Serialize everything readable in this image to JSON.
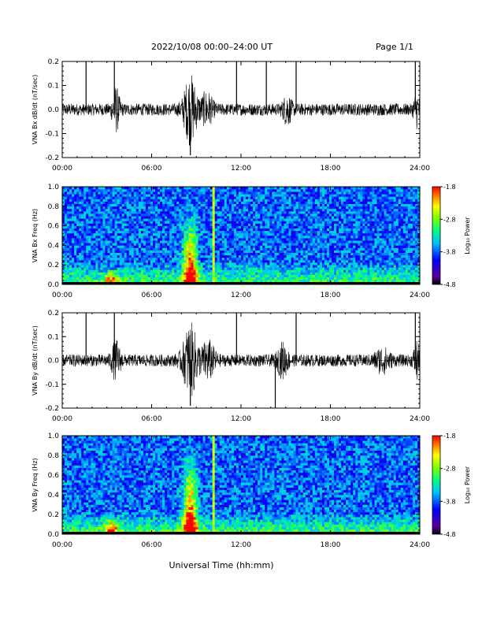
{
  "header": {
    "title": "2022/10/08  00:00–24:00 UT",
    "page": "Page 1/1"
  },
  "x_axis_label": "Universal Time (hh:mm)",
  "colorbar": {
    "label": "Log₁₀ Power",
    "ticks": [
      "-1.8",
      "-2.8",
      "-3.8",
      "-4.8"
    ],
    "colors": [
      "#000000",
      "#5a0099",
      "#0000ff",
      "#00c0ff",
      "#00ff80",
      "#7fff00",
      "#ffff00",
      "#ff8000",
      "#ff0000"
    ]
  },
  "chart_data": [
    {
      "type": "line",
      "ylabel": "VNA Bx dB/dt (nT/sec)",
      "xlim": [
        0,
        24
      ],
      "ylim": [
        -0.2,
        0.2
      ],
      "x_ticks": [
        "00:00",
        "06:00",
        "12:00",
        "18:00",
        "24:00"
      ],
      "y_ticks": [
        "0.2",
        "0.1",
        "0.0",
        "-0.1",
        "-0.2"
      ],
      "y_tick_values": [
        0.2,
        0.1,
        0.0,
        -0.1,
        -0.2
      ],
      "x_tick_values": [
        0,
        6,
        12,
        18,
        24
      ],
      "base_amplitude": 0.025,
      "bursts": [
        {
          "t": 3.6,
          "amp": 0.08,
          "w": 0.25
        },
        {
          "t": 8.6,
          "amp": 0.13,
          "w": 0.45
        },
        {
          "t": 9.7,
          "amp": 0.06,
          "w": 0.4
        },
        {
          "t": 15.1,
          "amp": 0.05,
          "w": 0.3
        },
        {
          "t": 23.8,
          "amp": 0.06,
          "w": 0.2
        }
      ],
      "spikes": [
        {
          "t": 1.6,
          "v": 0.2
        },
        {
          "t": 3.5,
          "v": 0.2
        },
        {
          "t": 8.6,
          "v": -0.19
        },
        {
          "t": 11.7,
          "v": 0.2
        },
        {
          "t": 13.7,
          "v": 0.2
        },
        {
          "t": 15.7,
          "v": 0.2
        },
        {
          "t": 23.7,
          "v": 0.2
        }
      ]
    },
    {
      "type": "heatmap",
      "ylabel": "VNA Bx Freq (Hz)",
      "xlim": [
        0,
        24
      ],
      "ylim": [
        0,
        1.0
      ],
      "x_ticks": [
        "00:00",
        "06:00",
        "12:00",
        "18:00",
        "24:00"
      ],
      "y_ticks": [
        "1.0",
        "0.8",
        "0.6",
        "0.4",
        "0.2",
        "0.0"
      ],
      "y_tick_values": [
        1.0,
        0.8,
        0.6,
        0.4,
        0.2,
        0.0
      ],
      "x_tick_values": [
        0,
        6,
        12,
        18,
        24
      ],
      "zlim": [
        -4.8,
        -1.8
      ],
      "enhancements": [
        {
          "t": 3.3,
          "fmax": 0.15,
          "boost": 0.8
        },
        {
          "t": 8.6,
          "fmax": 0.8,
          "boost": 1.0
        },
        {
          "t": 10.1,
          "fmax": 1.0,
          "boost": 0.7
        }
      ]
    },
    {
      "type": "line",
      "ylabel": "VNA By dB/dt (nT/sec)",
      "xlim": [
        0,
        24
      ],
      "ylim": [
        -0.2,
        0.2
      ],
      "x_ticks": [
        "00:00",
        "06:00",
        "12:00",
        "18:00",
        "24:00"
      ],
      "y_ticks": [
        "0.2",
        "0.1",
        "0.0",
        "-0.1",
        "-0.2"
      ],
      "y_tick_values": [
        0.2,
        0.1,
        0.0,
        -0.1,
        -0.2
      ],
      "x_tick_values": [
        0,
        6,
        12,
        18,
        24
      ],
      "base_amplitude": 0.025,
      "bursts": [
        {
          "t": 3.6,
          "amp": 0.07,
          "w": 0.3
        },
        {
          "t": 8.6,
          "amp": 0.14,
          "w": 0.5
        },
        {
          "t": 9.8,
          "amp": 0.07,
          "w": 0.45
        },
        {
          "t": 14.8,
          "amp": 0.06,
          "w": 0.35
        },
        {
          "t": 21.5,
          "amp": 0.04,
          "w": 0.5
        },
        {
          "t": 23.8,
          "amp": 0.07,
          "w": 0.2
        }
      ],
      "spikes": [
        {
          "t": 1.6,
          "v": 0.2
        },
        {
          "t": 3.5,
          "v": 0.2
        },
        {
          "t": 8.6,
          "v": -0.19
        },
        {
          "t": 11.7,
          "v": 0.2
        },
        {
          "t": 14.3,
          "v": -0.2
        },
        {
          "t": 15.7,
          "v": 0.2
        },
        {
          "t": 23.7,
          "v": 0.2
        }
      ]
    },
    {
      "type": "heatmap",
      "ylabel": "VNA By Freq (Hz)",
      "xlim": [
        0,
        24
      ],
      "ylim": [
        0,
        1.0
      ],
      "x_ticks": [
        "00:00",
        "06:00",
        "12:00",
        "18:00",
        "24:00"
      ],
      "y_ticks": [
        "1.0",
        "0.8",
        "0.6",
        "0.4",
        "0.2",
        "0.0"
      ],
      "y_tick_values": [
        1.0,
        0.8,
        0.6,
        0.4,
        0.2,
        0.0
      ],
      "x_tick_values": [
        0,
        6,
        12,
        18,
        24
      ],
      "zlim": [
        -4.8,
        -1.8
      ],
      "enhancements": [
        {
          "t": 3.3,
          "fmax": 0.2,
          "boost": 0.8
        },
        {
          "t": 8.6,
          "fmax": 0.9,
          "boost": 1.0
        },
        {
          "t": 10.1,
          "fmax": 1.0,
          "boost": 0.7
        }
      ]
    }
  ]
}
